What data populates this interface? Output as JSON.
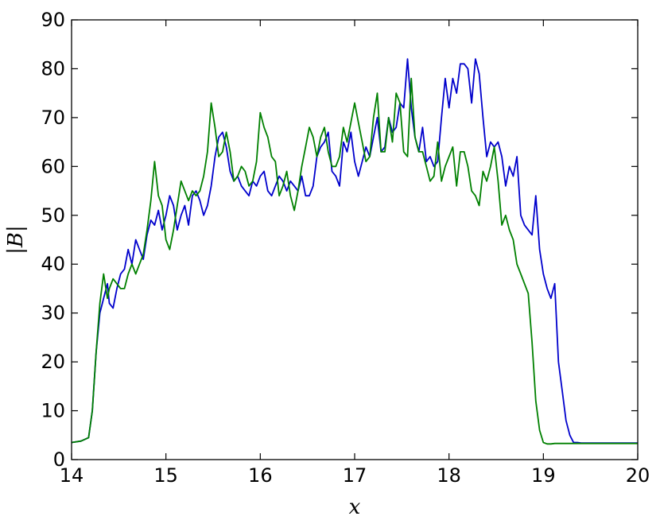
{
  "chart_data": {
    "type": "line",
    "title": "",
    "xlabel": "x",
    "ylabel": "|B|",
    "xlim": [
      14,
      20
    ],
    "ylim": [
      0,
      90
    ],
    "xticks": [
      14,
      15,
      16,
      17,
      18,
      19,
      20
    ],
    "yticks": [
      0,
      10,
      20,
      30,
      40,
      50,
      60,
      70,
      80,
      90
    ],
    "grid": false,
    "legend": "none",
    "series": [
      {
        "color": "#0000cc",
        "x": [
          14.0,
          14.1,
          14.18,
          14.22,
          14.26,
          14.3,
          14.34,
          14.38,
          14.4,
          14.44,
          14.48,
          14.52,
          14.56,
          14.6,
          14.64,
          14.68,
          14.72,
          14.76,
          14.8,
          14.84,
          14.88,
          14.92,
          14.96,
          15.0,
          15.04,
          15.08,
          15.12,
          15.16,
          15.2,
          15.24,
          15.28,
          15.32,
          15.36,
          15.4,
          15.44,
          15.48,
          15.52,
          15.56,
          15.6,
          15.64,
          15.68,
          15.72,
          15.76,
          15.8,
          15.84,
          15.88,
          15.92,
          15.96,
          16.0,
          16.04,
          16.08,
          16.12,
          16.16,
          16.2,
          16.24,
          16.28,
          16.32,
          16.36,
          16.4,
          16.44,
          16.48,
          16.52,
          16.56,
          16.6,
          16.64,
          16.68,
          16.72,
          16.76,
          16.8,
          16.84,
          16.88,
          16.92,
          16.96,
          17.0,
          17.04,
          17.08,
          17.12,
          17.16,
          17.2,
          17.24,
          17.28,
          17.32,
          17.36,
          17.4,
          17.44,
          17.48,
          17.52,
          17.56,
          17.6,
          17.64,
          17.68,
          17.72,
          17.76,
          17.8,
          17.84,
          17.88,
          17.92,
          17.96,
          18.0,
          18.04,
          18.08,
          18.12,
          18.16,
          18.2,
          18.24,
          18.28,
          18.32,
          18.36,
          18.4,
          18.44,
          18.48,
          18.52,
          18.56,
          18.6,
          18.64,
          18.68,
          18.72,
          18.76,
          18.8,
          18.84,
          18.88,
          18.92,
          18.96,
          19.0,
          19.04,
          19.08,
          19.12,
          19.16,
          19.2,
          19.24,
          19.28,
          19.32,
          19.36,
          19.4,
          19.6,
          19.8,
          20.0
        ],
        "y": [
          3.5,
          3.8,
          4.5,
          10,
          22,
          30,
          33,
          36,
          32,
          31,
          35,
          38,
          39,
          43,
          40,
          45,
          43,
          41,
          46,
          49,
          48,
          51,
          47,
          50,
          54,
          52,
          47,
          50,
          52,
          48,
          54,
          55,
          53,
          50,
          52,
          56,
          62,
          66,
          67,
          64,
          59,
          57,
          58,
          56,
          55,
          54,
          57,
          56,
          58,
          59,
          55,
          54,
          56,
          58,
          57,
          55,
          57,
          56,
          55,
          58,
          54,
          54,
          56,
          62,
          64,
          65,
          67,
          59,
          58,
          56,
          65,
          63,
          67,
          61,
          58,
          61,
          64,
          62,
          66,
          70,
          63,
          64,
          70,
          67,
          68,
          73,
          72,
          82,
          72,
          66,
          63,
          68,
          61,
          62,
          60,
          61,
          70,
          78,
          72,
          78,
          75,
          81,
          81,
          80,
          73,
          82,
          79,
          70,
          62,
          65,
          64,
          65,
          62,
          56,
          60,
          58,
          62,
          50,
          48,
          47,
          46,
          54,
          43,
          38,
          35,
          33,
          36,
          20,
          14,
          8,
          5,
          3.5,
          3.5,
          3.4,
          3.4,
          3.4,
          3.4
        ]
      },
      {
        "color": "#008000",
        "x": [
          14.0,
          14.1,
          14.18,
          14.22,
          14.26,
          14.3,
          14.34,
          14.38,
          14.4,
          14.44,
          14.48,
          14.52,
          14.56,
          14.6,
          14.64,
          14.68,
          14.72,
          14.76,
          14.8,
          14.84,
          14.88,
          14.92,
          14.96,
          15.0,
          15.04,
          15.08,
          15.12,
          15.16,
          15.2,
          15.24,
          15.28,
          15.32,
          15.36,
          15.4,
          15.44,
          15.48,
          15.52,
          15.56,
          15.6,
          15.64,
          15.68,
          15.72,
          15.76,
          15.8,
          15.84,
          15.88,
          15.92,
          15.96,
          16.0,
          16.04,
          16.08,
          16.12,
          16.16,
          16.2,
          16.24,
          16.28,
          16.32,
          16.36,
          16.4,
          16.44,
          16.48,
          16.52,
          16.56,
          16.6,
          16.64,
          16.68,
          16.72,
          16.76,
          16.8,
          16.84,
          16.88,
          16.92,
          16.96,
          17.0,
          17.04,
          17.08,
          17.12,
          17.16,
          17.2,
          17.24,
          17.28,
          17.32,
          17.36,
          17.4,
          17.44,
          17.48,
          17.52,
          17.56,
          17.6,
          17.64,
          17.68,
          17.72,
          17.76,
          17.8,
          17.84,
          17.88,
          17.92,
          17.96,
          18.0,
          18.04,
          18.08,
          18.12,
          18.16,
          18.2,
          18.24,
          18.28,
          18.32,
          18.36,
          18.4,
          18.44,
          18.48,
          18.52,
          18.56,
          18.6,
          18.64,
          18.68,
          18.72,
          18.76,
          18.8,
          18.84,
          18.88,
          18.92,
          18.96,
          19.0,
          19.04,
          19.08,
          19.12,
          19.16,
          19.2,
          19.24,
          19.28,
          19.32,
          19.36,
          19.4,
          19.6,
          19.8,
          20.0
        ],
        "y": [
          3.5,
          3.8,
          4.5,
          10,
          22,
          32,
          38,
          33,
          35,
          37,
          36,
          35,
          35,
          38,
          40,
          38,
          40,
          42,
          47,
          53,
          61,
          54,
          52,
          45,
          43,
          47,
          52,
          57,
          55,
          53,
          55,
          54,
          55,
          58,
          63,
          73,
          68,
          62,
          63,
          67,
          63,
          57,
          58,
          60,
          59,
          56,
          57,
          61,
          71,
          68,
          66,
          62,
          61,
          54,
          56,
          59,
          54,
          51,
          55,
          60,
          64,
          68,
          66,
          62,
          66,
          68,
          63,
          60,
          60,
          62,
          68,
          65,
          69,
          73,
          69,
          65,
          61,
          62,
          70,
          75,
          63,
          63,
          70,
          65,
          75,
          73,
          63,
          62,
          78,
          66,
          63,
          63,
          60,
          57,
          58,
          65,
          57,
          60,
          62,
          64,
          56,
          63,
          63,
          60,
          55,
          54,
          52,
          59,
          57,
          60,
          64,
          57,
          48,
          50,
          47,
          45,
          40,
          38,
          36,
          34,
          24,
          12,
          6,
          3.5,
          3.2,
          3.2,
          3.3,
          3.3,
          3.3,
          3.3,
          3.3,
          3.3,
          3.3,
          3.3,
          3.3,
          3.3,
          3.3
        ]
      }
    ]
  }
}
